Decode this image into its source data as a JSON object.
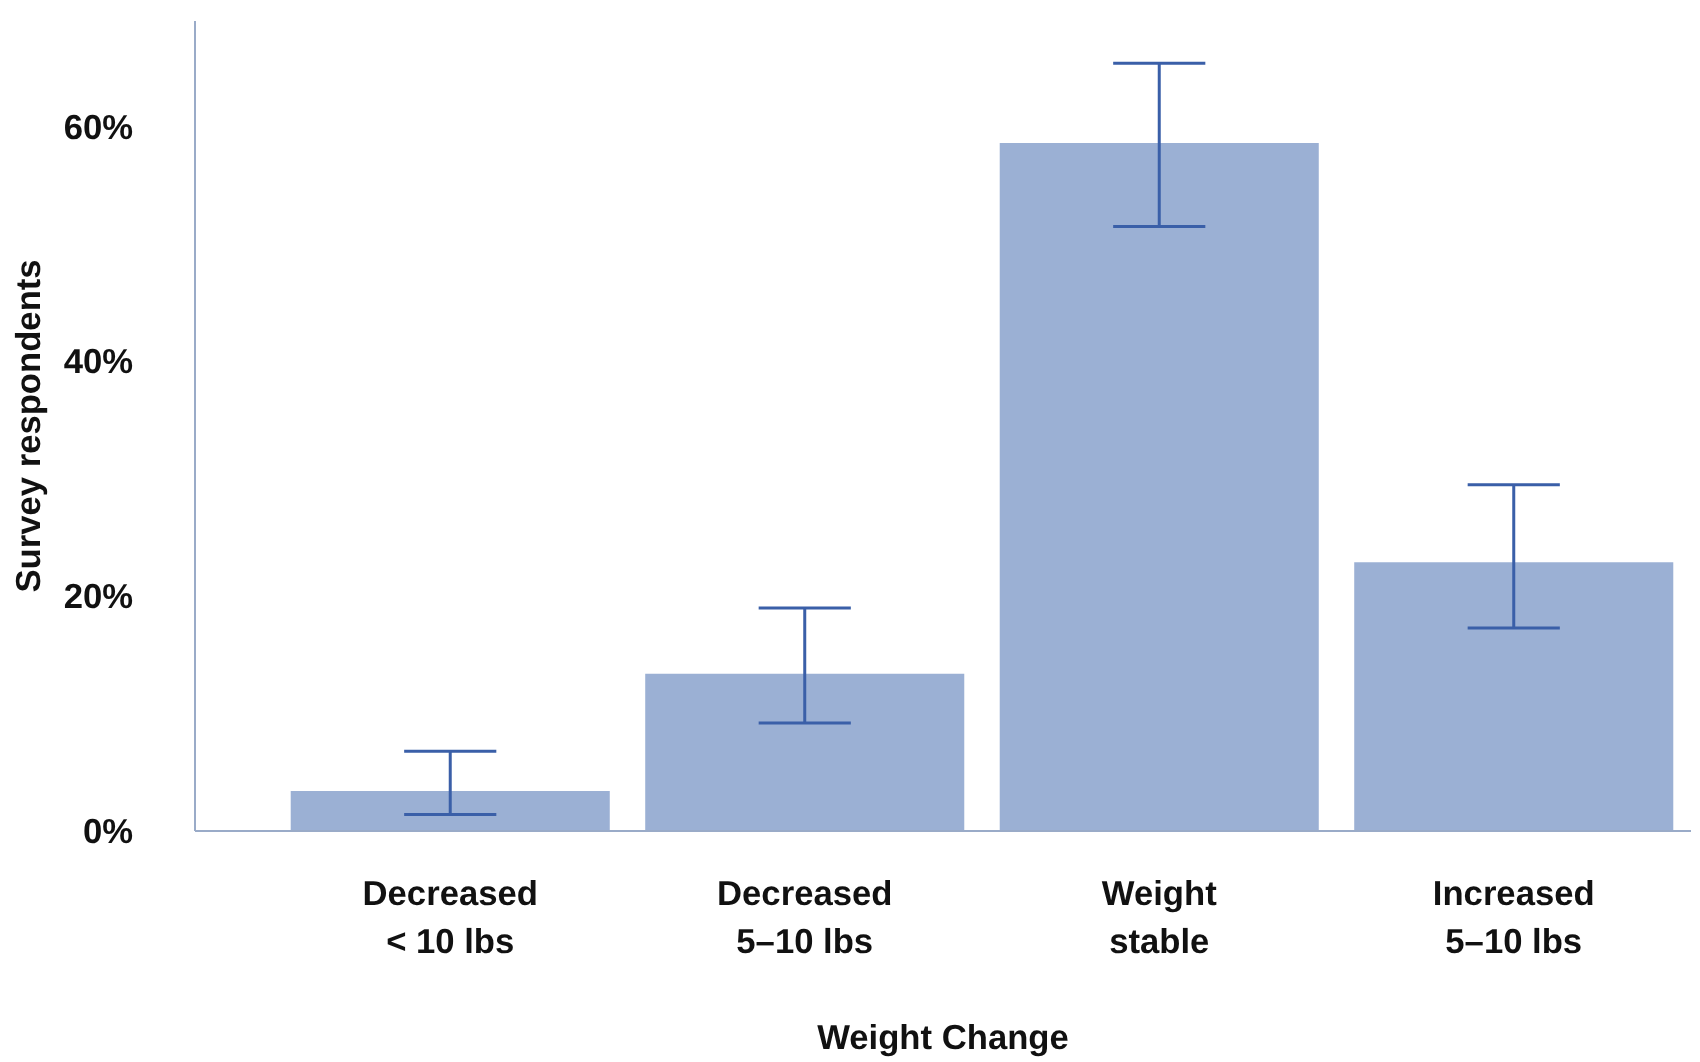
{
  "chart_data": {
    "type": "bar",
    "xlabel": "Weight Change",
    "ylabel": "Survey respondents",
    "categories": [
      "Decreased\n< 10 lbs",
      "Decreased\n5–10 lbs",
      "Weight\nstable",
      "Increased\n5–10 lbs"
    ],
    "values": [
      3.4,
      13.4,
      58.6,
      22.9
    ],
    "errors": [
      [
        1.4,
        6.8
      ],
      [
        9.2,
        19.0
      ],
      [
        51.5,
        65.4
      ],
      [
        17.3,
        29.5
      ]
    ],
    "color": "#9bb0d4",
    "ylim": [
      0,
      69
    ],
    "yticks": [
      {
        "value": 0,
        "label": "0%"
      },
      {
        "value": 20,
        "label": "20%"
      },
      {
        "value": 40,
        "label": "40%"
      },
      {
        "value": 60,
        "label": "60%"
      }
    ],
    "grid": false
  }
}
